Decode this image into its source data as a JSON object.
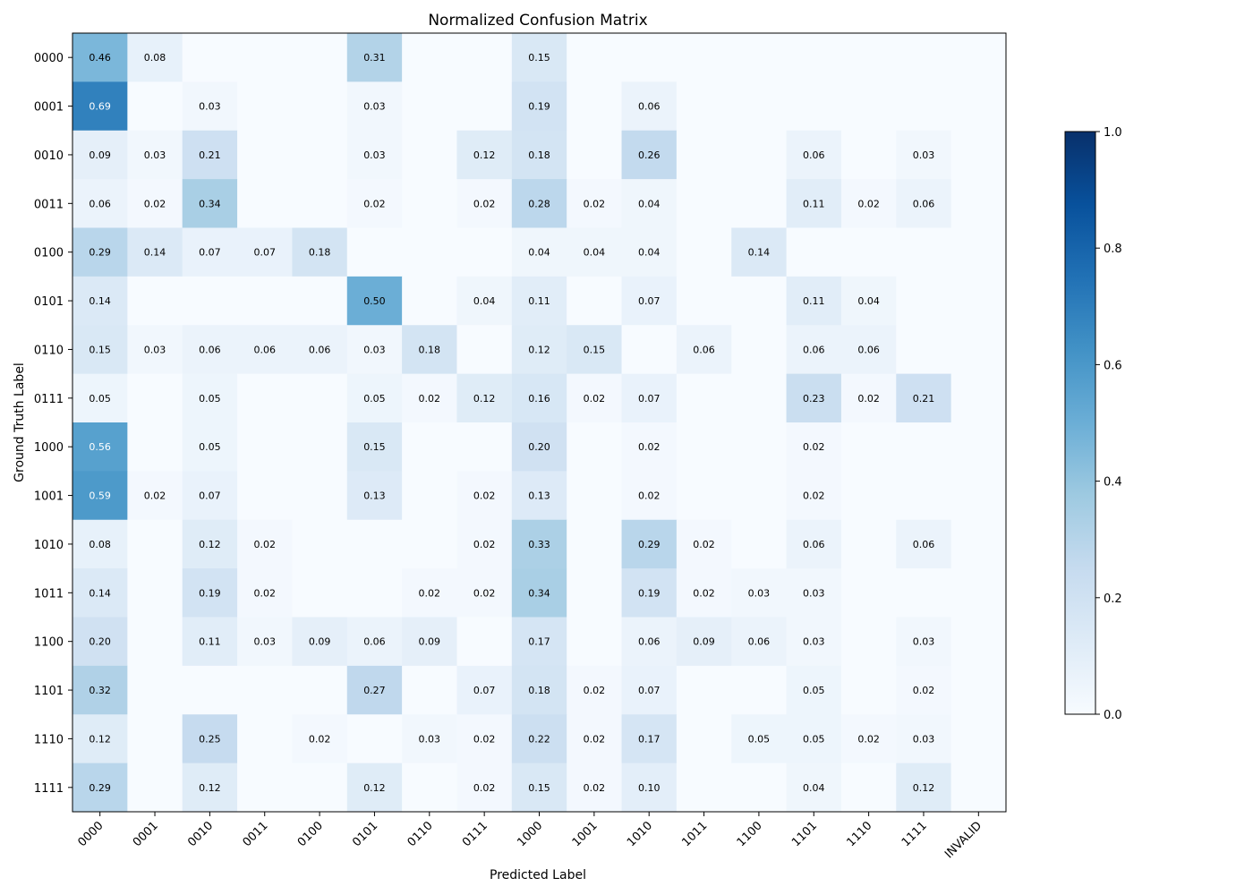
{
  "chart_data": {
    "type": "heatmap",
    "title": "Normalized Confusion Matrix",
    "xlabel": "Predicted Label",
    "ylabel": "Ground Truth Label",
    "x_categories": [
      "0000",
      "0001",
      "0010",
      "0011",
      "0100",
      "0101",
      "0110",
      "0111",
      "1000",
      "1001",
      "1010",
      "1011",
      "1100",
      "1101",
      "1110",
      "1111",
      "INVALID"
    ],
    "y_categories": [
      "0000",
      "0001",
      "0010",
      "0011",
      "0100",
      "0101",
      "0110",
      "0111",
      "1000",
      "1001",
      "1010",
      "1011",
      "1100",
      "1101",
      "1110",
      "1111"
    ],
    "colormap": "Blues",
    "color_range": [
      0.0,
      1.0
    ],
    "colorbar_ticks": [
      "0.0",
      "0.2",
      "0.4",
      "0.6",
      "0.8",
      "1.0"
    ],
    "colorbar_tick_values": [
      0.0,
      0.2,
      0.4,
      0.6,
      0.8,
      1.0
    ],
    "values": [
      [
        0.46,
        0.08,
        0,
        0,
        0,
        0.31,
        0,
        0,
        0.15,
        0,
        0,
        0,
        0,
        0,
        0,
        0,
        0
      ],
      [
        0.69,
        0,
        0.03,
        0,
        0,
        0.03,
        0,
        0,
        0.19,
        0,
        0.06,
        0,
        0,
        0,
        0,
        0,
        0
      ],
      [
        0.09,
        0.03,
        0.21,
        0,
        0,
        0.03,
        0,
        0.12,
        0.18,
        0,
        0.26,
        0,
        0,
        0.06,
        0,
        0.03,
        0
      ],
      [
        0.06,
        0.02,
        0.34,
        0,
        0,
        0.02,
        0,
        0.02,
        0.28,
        0.02,
        0.04,
        0,
        0,
        0.11,
        0.02,
        0.06,
        0
      ],
      [
        0.29,
        0.14,
        0.07,
        0.07,
        0.18,
        0,
        0,
        0,
        0.04,
        0.04,
        0.04,
        0,
        0.14,
        0,
        0,
        0,
        0
      ],
      [
        0.14,
        0,
        0,
        0,
        0,
        0.5,
        0,
        0.04,
        0.11,
        0,
        0.07,
        0,
        0,
        0.11,
        0.04,
        0,
        0
      ],
      [
        0.15,
        0.03,
        0.06,
        0.06,
        0.06,
        0.03,
        0.18,
        0,
        0.12,
        0.15,
        0,
        0.06,
        0,
        0.06,
        0.06,
        0,
        0
      ],
      [
        0.05,
        0,
        0.05,
        0,
        0,
        0.05,
        0.02,
        0.12,
        0.16,
        0.02,
        0.07,
        0,
        0,
        0.23,
        0.02,
        0.21,
        0
      ],
      [
        0.56,
        0,
        0.05,
        0,
        0,
        0.15,
        0,
        0,
        0.2,
        0,
        0.02,
        0,
        0,
        0.02,
        0,
        0,
        0
      ],
      [
        0.59,
        0.02,
        0.07,
        0,
        0,
        0.13,
        0,
        0.02,
        0.13,
        0,
        0.02,
        0,
        0,
        0.02,
        0,
        0,
        0
      ],
      [
        0.08,
        0,
        0.12,
        0.02,
        0,
        0,
        0,
        0.02,
        0.33,
        0,
        0.29,
        0.02,
        0,
        0.06,
        0,
        0.06,
        0
      ],
      [
        0.14,
        0,
        0.19,
        0.02,
        0,
        0,
        0.02,
        0.02,
        0.34,
        0,
        0.19,
        0.02,
        0.03,
        0.03,
        0,
        0,
        0
      ],
      [
        0.2,
        0,
        0.11,
        0.03,
        0.09,
        0.06,
        0.09,
        0,
        0.17,
        0,
        0.06,
        0.09,
        0.06,
        0.03,
        0,
        0.03,
        0
      ],
      [
        0.32,
        0,
        0,
        0,
        0,
        0.27,
        0,
        0.07,
        0.18,
        0.02,
        0.07,
        0,
        0,
        0.05,
        0,
        0.02,
        0
      ],
      [
        0.12,
        0,
        0.25,
        0,
        0.02,
        0,
        0.03,
        0.02,
        0.22,
        0.02,
        0.17,
        0,
        0.05,
        0.05,
        0.02,
        0.03,
        0
      ],
      [
        0.29,
        0,
        0.12,
        0,
        0,
        0.12,
        0,
        0.02,
        0.15,
        0.02,
        0.1,
        0,
        0,
        0.04,
        0,
        0.12,
        0
      ]
    ]
  }
}
